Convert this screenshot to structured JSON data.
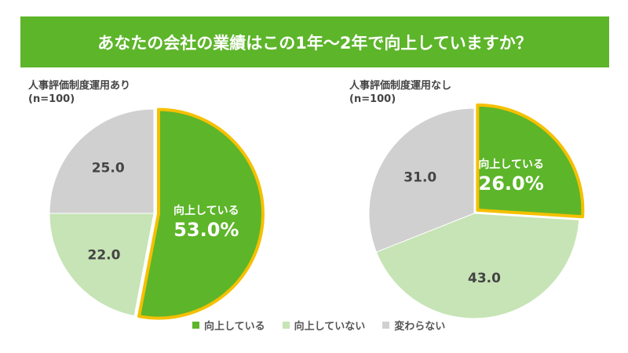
{
  "chart_data": [
    {
      "type": "pie",
      "title": "あなたの会社の業績はこの1年〜2年で向上していますか？",
      "subtitle": "人事評価制度運用あり",
      "n_label": "(n=100)",
      "categories": [
        "向上している",
        "向上していない",
        "変わらない"
      ],
      "values": [
        53.0,
        22.0,
        25.0
      ],
      "labels": [
        "53.0%",
        "22.0",
        "25.0"
      ],
      "highlight_label": "向上している",
      "legend": "bottom"
    },
    {
      "type": "pie",
      "title": "あなたの会社の業績はこの1年〜2年で向上していますか？",
      "subtitle": "人事評価制度運用なし",
      "n_label": "(n=100)",
      "categories": [
        "向上している",
        "向上していない",
        "変わらない"
      ],
      "values": [
        26.0,
        43.0,
        31.0
      ],
      "labels": [
        "26.0%",
        "43.0",
        "31.0"
      ],
      "highlight_label": "向上している",
      "legend": "bottom"
    }
  ],
  "title": "あなたの会社の業績はこの1年〜2年で向上していますか？",
  "legend": [
    "向上している",
    "向上していない",
    "変わらない"
  ],
  "colors": {
    "banner": "#5db52a",
    "improved": "#5db52a",
    "not_improved": "#c6e4b5",
    "unchanged": "#d1d0d0",
    "highlight_outline": "#f5c000"
  }
}
